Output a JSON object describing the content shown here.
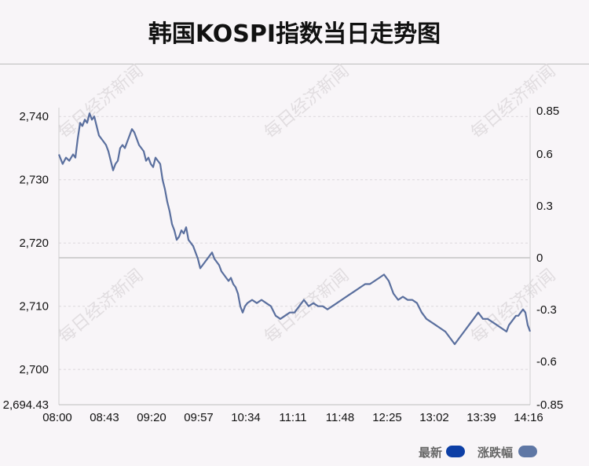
{
  "title": "韩国KOSPI指数当日走势图",
  "watermark": "每日经济新闻",
  "legend": [
    {
      "label": "最新",
      "color": "#0d3fa6"
    },
    {
      "label": "涨跌幅",
      "color": "#5f77a5"
    }
  ],
  "chart_data": {
    "type": "line",
    "x_ticks": [
      "08:00",
      "08:43",
      "09:20",
      "09:57",
      "10:34",
      "11:11",
      "11:48",
      "12:25",
      "13:02",
      "13:39",
      "14:16"
    ],
    "y_left_ticks": [
      "2,740",
      "2,730",
      "2,720",
      "2,710",
      "2,700",
      "2,694.43"
    ],
    "y_left_tick_values": [
      2740,
      2730,
      2720,
      2710,
      2700,
      2694.43
    ],
    "y_right_ticks": [
      "0.85",
      "0.6",
      "0.3",
      "0",
      "-0.3",
      "-0.6",
      "-0.85"
    ],
    "y_right_tick_values": [
      0.85,
      0.6,
      0.3,
      0,
      -0.3,
      -0.6,
      -0.85
    ],
    "ylim_left": [
      2694.43,
      2740.9
    ],
    "ylim_right": [
      -0.85,
      0.85
    ],
    "xlim": [
      0,
      100
    ],
    "line_color": "#5a6f9e",
    "grid": "dashed horizontal",
    "legend_position": "bottom-right",
    "series": [
      {
        "values": [
          [
            0,
            2734
          ],
          [
            0.8,
            2732.5
          ],
          [
            1.5,
            2733.5
          ],
          [
            2.2,
            2733
          ],
          [
            3,
            2734
          ],
          [
            3.5,
            2733.5
          ],
          [
            4,
            2736.5
          ],
          [
            4.5,
            2739
          ],
          [
            5,
            2738.5
          ],
          [
            5.5,
            2739.5
          ],
          [
            6,
            2739
          ],
          [
            6.5,
            2740.5
          ],
          [
            7,
            2739.5
          ],
          [
            7.5,
            2740
          ],
          [
            8,
            2738.5
          ],
          [
            8.5,
            2737
          ],
          [
            9,
            2736.5
          ],
          [
            9.5,
            2736
          ],
          [
            10,
            2735.5
          ],
          [
            10.5,
            2734.5
          ],
          [
            11,
            2733
          ],
          [
            11.5,
            2731.5
          ],
          [
            12,
            2732.5
          ],
          [
            12.5,
            2733
          ],
          [
            13,
            2735
          ],
          [
            13.5,
            2735.5
          ],
          [
            14,
            2735
          ],
          [
            14.5,
            2736
          ],
          [
            15,
            2737
          ],
          [
            15.5,
            2738
          ],
          [
            16,
            2737.5
          ],
          [
            16.5,
            2736.5
          ],
          [
            17,
            2735.5
          ],
          [
            17.5,
            2735
          ],
          [
            18,
            2734.5
          ],
          [
            18.5,
            2733
          ],
          [
            19,
            2733.5
          ],
          [
            19.5,
            2732.5
          ],
          [
            20,
            2732
          ],
          [
            20.5,
            2733.5
          ],
          [
            21,
            2733
          ],
          [
            21.5,
            2732.5
          ],
          [
            22,
            2730
          ],
          [
            22.5,
            2728.5
          ],
          [
            23,
            2726.5
          ],
          [
            23.5,
            2725
          ],
          [
            24,
            2723
          ],
          [
            24.5,
            2722
          ],
          [
            25,
            2720.5
          ],
          [
            25.5,
            2721
          ],
          [
            26,
            2722
          ],
          [
            26.5,
            2721.5
          ],
          [
            27,
            2722.5
          ],
          [
            27.5,
            2720.5
          ],
          [
            28,
            2720
          ],
          [
            28.5,
            2719.5
          ],
          [
            29,
            2718.5
          ],
          [
            29.5,
            2717.5
          ],
          [
            30,
            2716
          ],
          [
            30.5,
            2716.5
          ],
          [
            31,
            2717
          ],
          [
            31.5,
            2717.5
          ],
          [
            32,
            2718
          ],
          [
            32.5,
            2718.5
          ],
          [
            33,
            2717.5
          ],
          [
            33.5,
            2717
          ],
          [
            34,
            2716.5
          ],
          [
            34.5,
            2715.5
          ],
          [
            35,
            2715
          ],
          [
            35.5,
            2714.5
          ],
          [
            36,
            2714
          ],
          [
            36.5,
            2714.5
          ],
          [
            37,
            2713.5
          ],
          [
            37.5,
            2713
          ],
          [
            38,
            2712
          ],
          [
            38.5,
            2710
          ],
          [
            39,
            2709
          ],
          [
            39.5,
            2710
          ],
          [
            40,
            2710.5
          ],
          [
            41,
            2711
          ],
          [
            42,
            2710.5
          ],
          [
            43,
            2711
          ],
          [
            44,
            2710.5
          ],
          [
            45,
            2710
          ],
          [
            46,
            2708.5
          ],
          [
            47,
            2708
          ],
          [
            48,
            2708.5
          ],
          [
            49,
            2709
          ],
          [
            50,
            2709
          ],
          [
            51,
            2710
          ],
          [
            52,
            2711
          ],
          [
            53,
            2710
          ],
          [
            54,
            2710.5
          ],
          [
            55,
            2710
          ],
          [
            56,
            2710
          ],
          [
            57,
            2709.5
          ],
          [
            58,
            2710
          ],
          [
            59,
            2710.5
          ],
          [
            60,
            2711
          ],
          [
            61,
            2711.5
          ],
          [
            62,
            2712
          ],
          [
            63,
            2712.5
          ],
          [
            64,
            2713
          ],
          [
            65,
            2713.5
          ],
          [
            66,
            2713.5
          ],
          [
            67,
            2714
          ],
          [
            68,
            2714.5
          ],
          [
            69,
            2715
          ],
          [
            70,
            2714
          ],
          [
            71,
            2712
          ],
          [
            72,
            2711
          ],
          [
            73,
            2711.5
          ],
          [
            74,
            2711
          ],
          [
            75,
            2711
          ],
          [
            76,
            2710.5
          ],
          [
            77,
            2709
          ],
          [
            78,
            2708
          ],
          [
            79,
            2707.5
          ],
          [
            80,
            2707
          ],
          [
            81,
            2706.5
          ],
          [
            82,
            2706
          ],
          [
            83,
            2705
          ],
          [
            84,
            2704
          ],
          [
            85,
            2705
          ],
          [
            86,
            2706
          ],
          [
            87,
            2707
          ],
          [
            88,
            2708
          ],
          [
            89,
            2709
          ],
          [
            90,
            2708
          ],
          [
            91,
            2708
          ],
          [
            92,
            2707.5
          ],
          [
            93,
            2707
          ],
          [
            94,
            2706.5
          ],
          [
            95,
            2706
          ],
          [
            95.5,
            2707
          ],
          [
            96,
            2707.5
          ],
          [
            96.5,
            2708
          ],
          [
            97,
            2708.5
          ],
          [
            97.5,
            2708.5
          ],
          [
            98,
            2709
          ],
          [
            98.5,
            2709.5
          ],
          [
            99,
            2709
          ],
          [
            99.5,
            2707
          ],
          [
            100,
            2706
          ]
        ]
      }
    ]
  }
}
